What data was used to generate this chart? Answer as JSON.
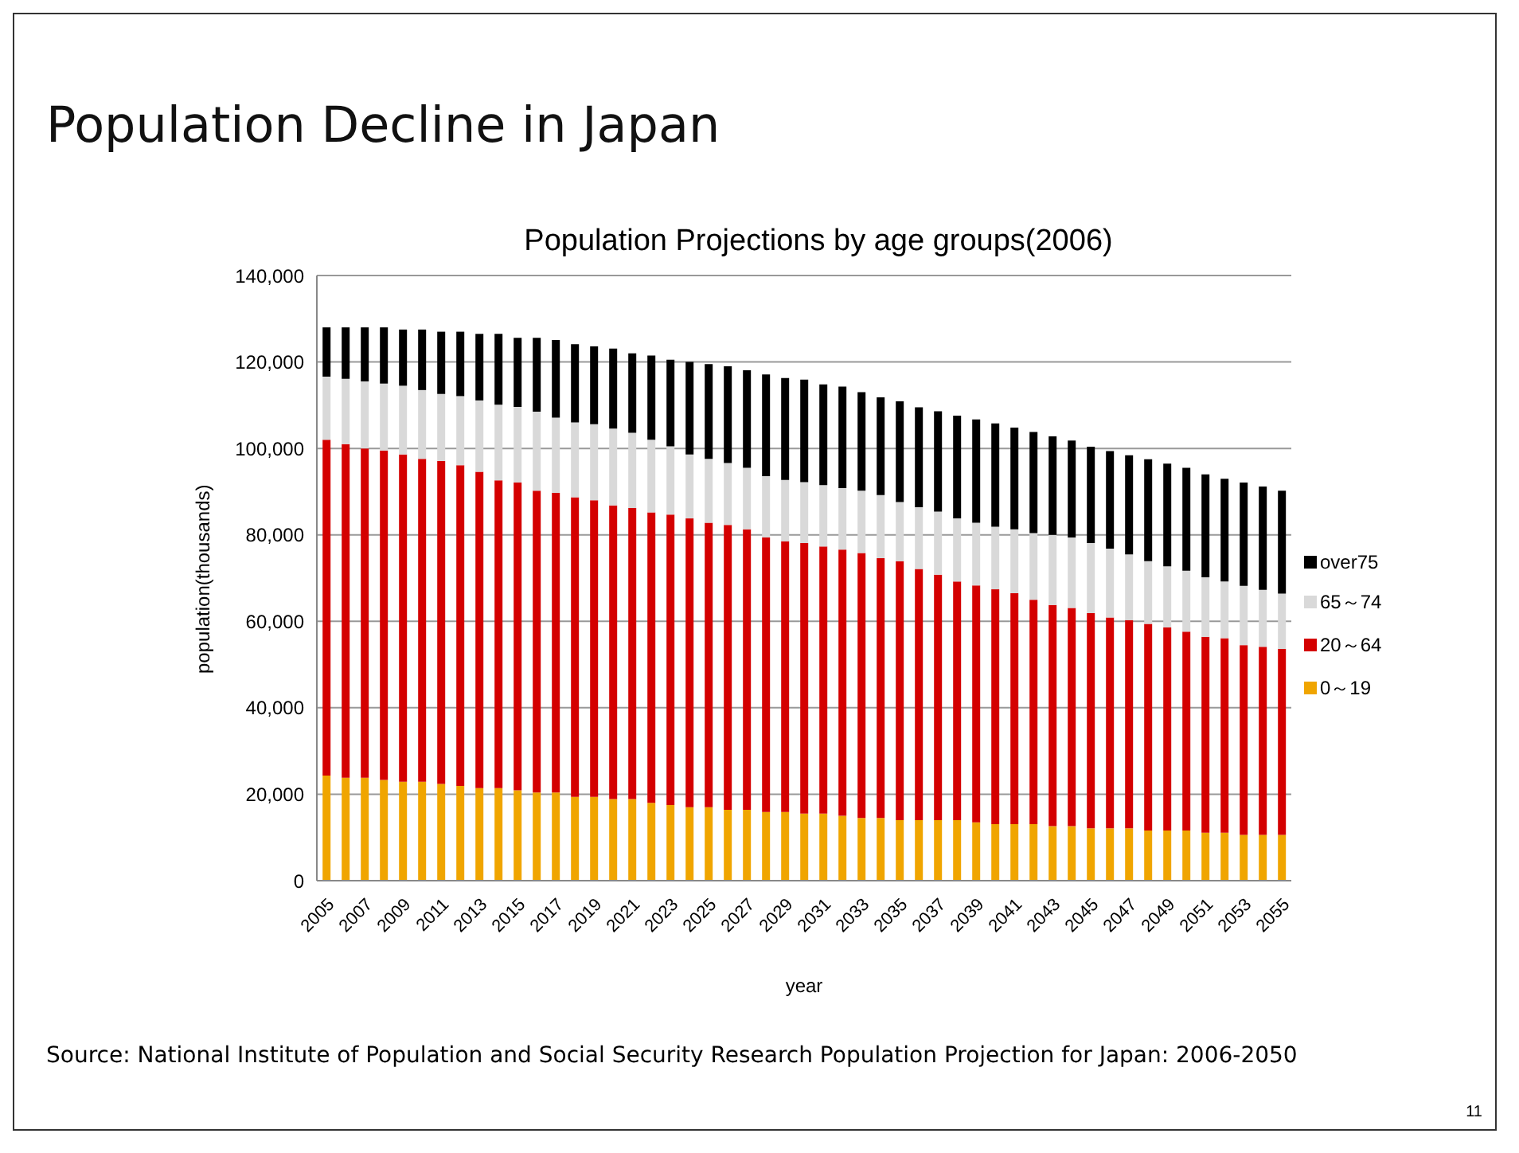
{
  "chart_data": {
    "type": "bar",
    "title": "Population Decline in Japan",
    "subtitle": "Population Projections by age groups(2006)",
    "xlabel": "year",
    "ylabel": "population(thousands)",
    "categories": [
      "2005",
      null,
      "2007",
      null,
      "2009",
      null,
      "2011",
      null,
      "2013",
      null,
      "2015",
      null,
      "2017",
      null,
      "2019",
      null,
      "2021",
      null,
      "2023",
      null,
      "2025",
      null,
      "2027",
      null,
      "2029",
      null,
      "2031",
      null,
      "2033",
      null,
      "2035",
      null,
      "2037",
      null,
      "2039",
      null,
      "2041",
      null,
      "2043",
      null,
      "2045",
      null,
      "2047",
      null,
      "2049",
      null,
      "2051",
      null,
      "2053",
      null,
      "2055"
    ],
    "stacked": true,
    "series": [
      {
        "name": "0～19",
        "color": "#f0a500",
        "values": [
          24300,
          23800,
          23800,
          23300,
          22900,
          22900,
          22400,
          21900,
          21400,
          21400,
          20900,
          20400,
          20400,
          19400,
          19400,
          18900,
          18900,
          18000,
          17500,
          17000,
          17000,
          16400,
          16400,
          15900,
          15900,
          15500,
          15500,
          15000,
          14500,
          14500,
          14000,
          14000,
          14000,
          14000,
          13500,
          13100,
          13100,
          13100,
          12600,
          12600,
          12100,
          12100,
          12100,
          11600,
          11600,
          11600,
          11100,
          11100,
          10600,
          10600,
          10600
        ]
      },
      {
        "name": "20～64",
        "color": "#d40000",
        "values": [
          77700,
          77200,
          76200,
          76200,
          75700,
          74700,
          74700,
          74200,
          73200,
          71200,
          71200,
          69800,
          69300,
          69300,
          68600,
          67900,
          67300,
          67200,
          67200,
          66800,
          65800,
          65900,
          64900,
          63500,
          62600,
          62600,
          61800,
          61600,
          61300,
          60100,
          59900,
          58100,
          56800,
          55200,
          54800,
          54300,
          53400,
          51900,
          51200,
          50500,
          49800,
          48800,
          48200,
          47800,
          47000,
          46000,
          45300,
          45000,
          43900,
          43500,
          43000
        ]
      },
      {
        "name": "65～74",
        "color": "#d9d9d9",
        "values": [
          14600,
          15100,
          15500,
          15500,
          15900,
          15900,
          15500,
          16000,
          16500,
          17500,
          17500,
          18300,
          17400,
          17300,
          17600,
          17800,
          17400,
          16800,
          15800,
          14800,
          14800,
          14300,
          14200,
          14200,
          14200,
          14100,
          14200,
          14200,
          14400,
          14600,
          13700,
          14300,
          14600,
          14600,
          14500,
          14500,
          14800,
          15400,
          16200,
          16300,
          16200,
          15900,
          15200,
          14500,
          14100,
          14100,
          13800,
          13100,
          13700,
          13200,
          12800
        ]
      },
      {
        "name": "over75",
        "color": "#000000",
        "values": [
          11400,
          11900,
          12500,
          13000,
          13000,
          14000,
          14400,
          14900,
          15400,
          16400,
          16000,
          17100,
          18000,
          18100,
          18000,
          18500,
          18400,
          19500,
          20000,
          21400,
          21900,
          22400,
          22600,
          23500,
          23600,
          23700,
          23300,
          23500,
          22800,
          22600,
          23300,
          23100,
          23200,
          23800,
          23900,
          23900,
          23500,
          23400,
          22800,
          22400,
          22300,
          22600,
          22900,
          23600,
          23800,
          23800,
          23800,
          23800,
          23900,
          23900,
          23800
        ]
      }
    ],
    "ylim": [
      0,
      140000
    ],
    "yticks": [
      0,
      {
        "value": 20000,
        "label": "20,000"
      },
      {
        "value": 40000,
        "label": "40,000"
      },
      {
        "value": 60000,
        "label": "60,000"
      },
      {
        "value": 80000,
        "label": "80,000"
      },
      {
        "value": 100000,
        "label": "100,000"
      },
      {
        "value": 120000,
        "label": "120,000"
      },
      {
        "value": 140000,
        "label": "140,000"
      }
    ],
    "grid": "y",
    "legend": "right",
    "annotations": [
      "Source: National Institute of Population and Social Security Research Population Projection for Japan: 2006-2050",
      "11"
    ]
  }
}
